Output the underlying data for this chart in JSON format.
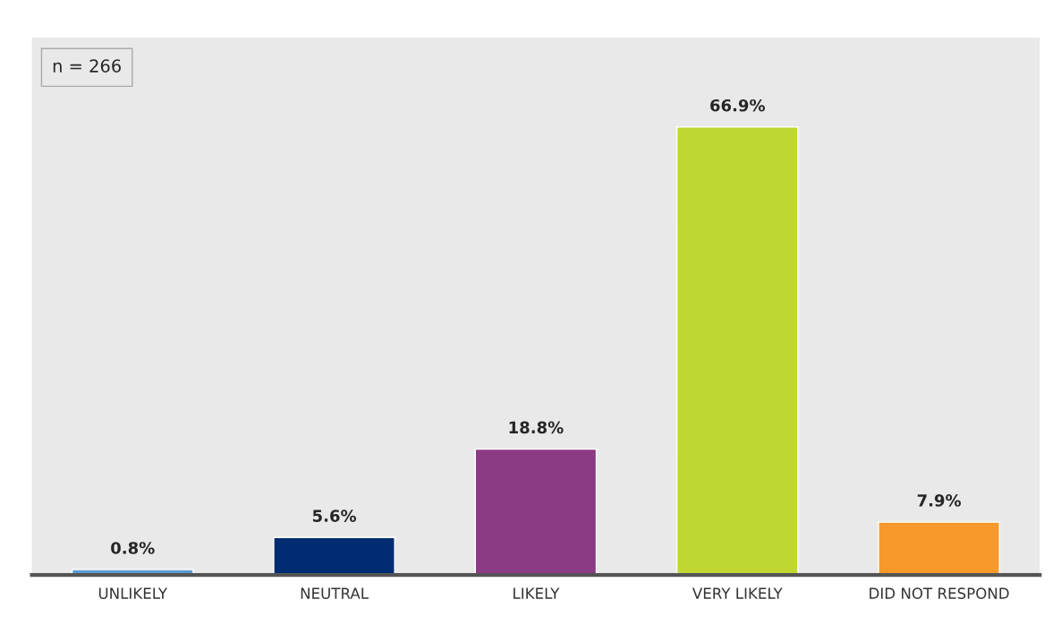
{
  "chart_data": {
    "type": "bar",
    "categories": [
      "UNLIKELY",
      "NEUTRAL",
      "LIKELY",
      "VERY LIKELY",
      "DID NOT RESPOND"
    ],
    "values": [
      0.8,
      5.6,
      18.8,
      66.9,
      7.9
    ],
    "value_labels": [
      "0.8%",
      "5.6%",
      "18.8%",
      "66.9%",
      "7.9%"
    ],
    "colors": [
      "#5b9bd5",
      "#002d72",
      "#8b3a84",
      "#bfd730",
      "#f7992b"
    ],
    "annotations": [
      "n = 266"
    ],
    "grid": false,
    "legend": false
  }
}
